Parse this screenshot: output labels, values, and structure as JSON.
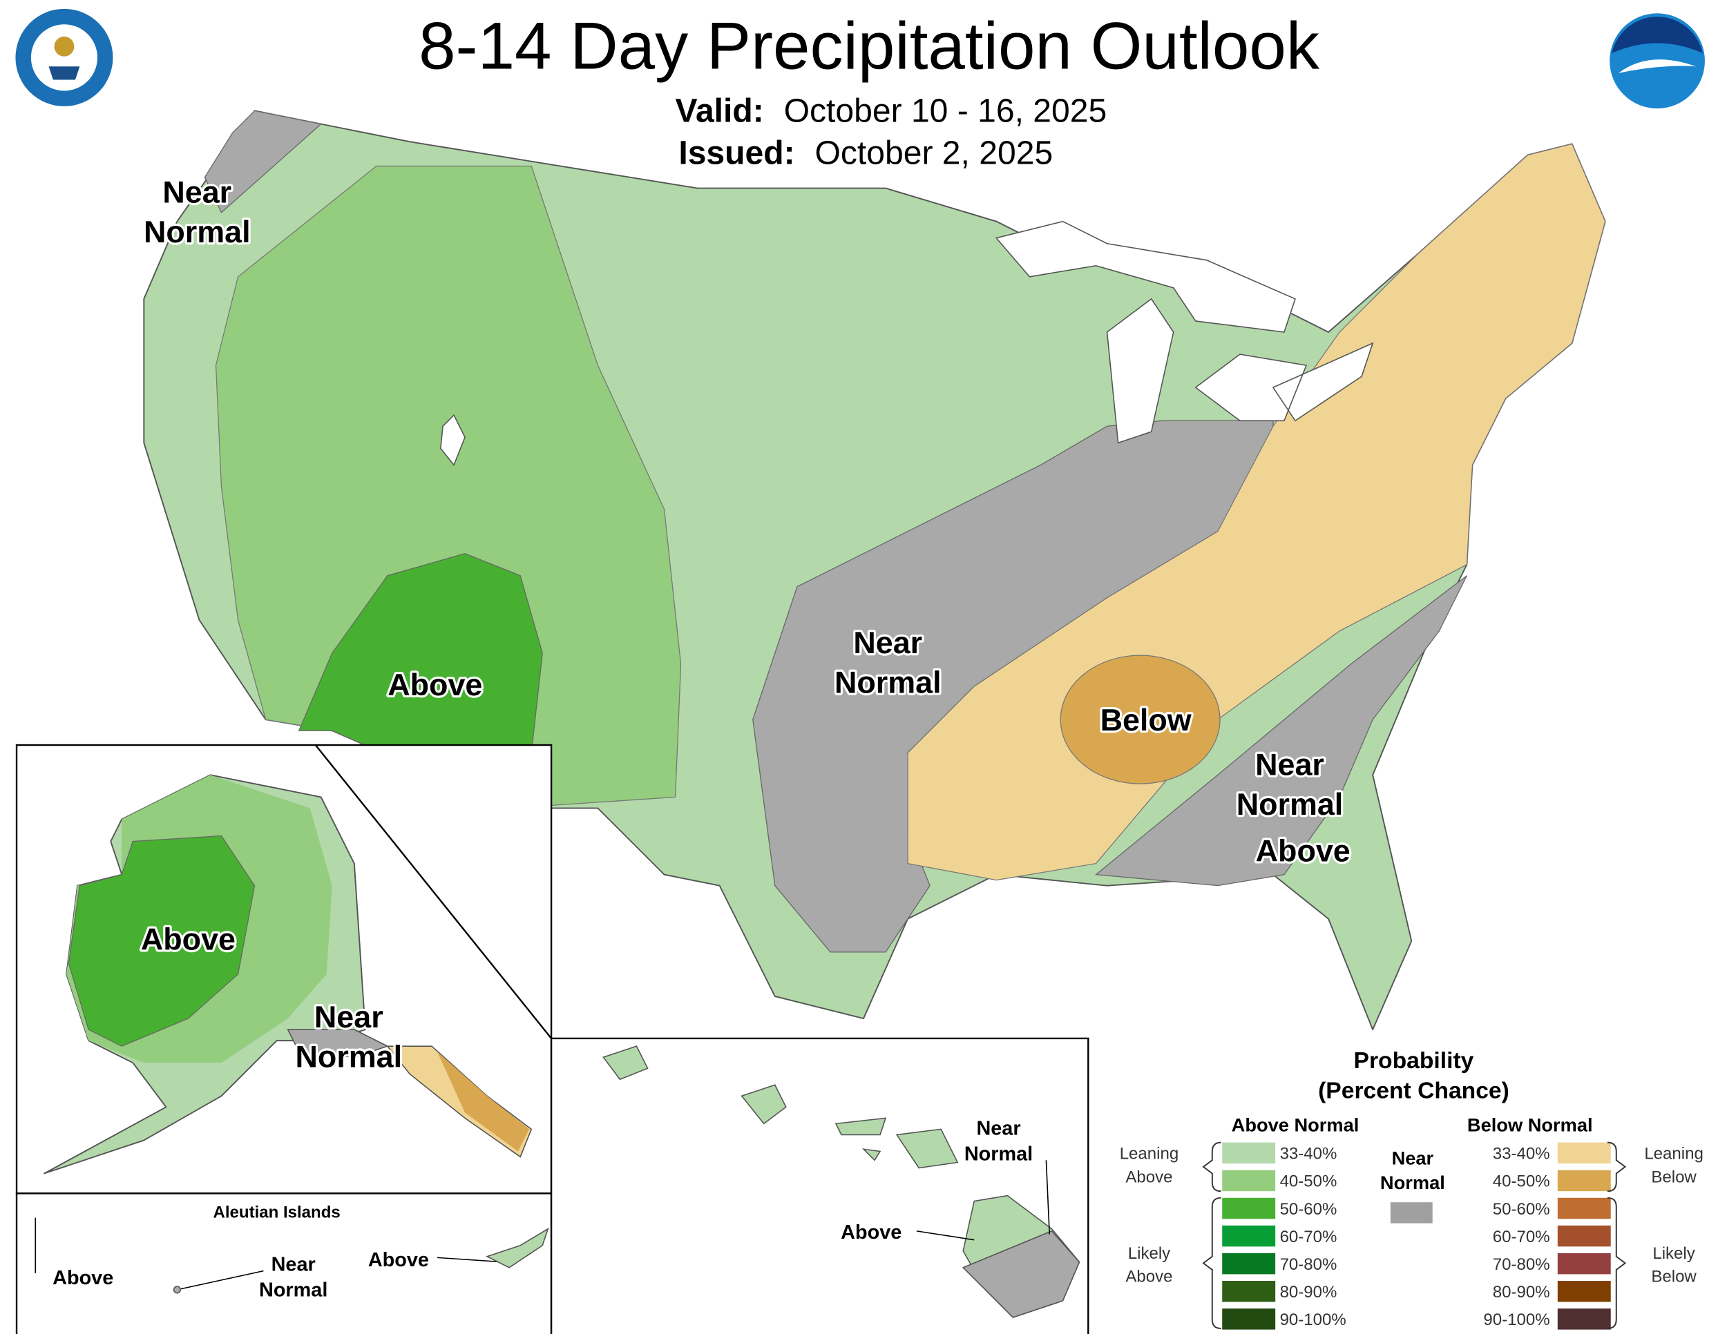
{
  "title": "8-14 Day Precipitation Outlook",
  "valid": {
    "label": "Valid:",
    "value": "October 10 - 16, 2025"
  },
  "issued": {
    "label": "Issued:",
    "value": "October 2, 2025"
  },
  "map_labels": [
    {
      "lines": [
        "Near",
        "Normal"
      ]
    },
    {
      "lines": [
        "Above"
      ]
    },
    {
      "lines": [
        "Near",
        "Normal"
      ]
    },
    {
      "lines": [
        "Below"
      ]
    },
    {
      "lines": [
        "Near",
        "Normal"
      ]
    },
    {
      "lines": [
        "Above"
      ]
    }
  ],
  "alaska": {
    "labels": [
      {
        "lines": [
          "Above"
        ]
      },
      {
        "lines": [
          "Near",
          "Normal"
        ]
      }
    ]
  },
  "aleutians": {
    "title": "Aleutian Islands",
    "labels": [
      {
        "lines": [
          "Above"
        ]
      },
      {
        "lines": [
          "Near",
          "Normal"
        ]
      },
      {
        "lines": [
          "Above"
        ]
      }
    ]
  },
  "hawaii": {
    "labels": [
      {
        "lines": [
          "Near",
          "Normal"
        ]
      },
      {
        "lines": [
          "Above"
        ]
      }
    ]
  },
  "legend": {
    "title": "Probability",
    "subtitle": "(Percent Chance)",
    "above": {
      "heading": "Above Normal",
      "items": [
        {
          "range": "33-40%",
          "color": "#b3d9ab"
        },
        {
          "range": "40-50%",
          "color": "#94cd7e"
        },
        {
          "range": "50-60%",
          "color": "#48b030"
        },
        {
          "range": "60-70%",
          "color": "#079f35"
        },
        {
          "range": "70-80%",
          "color": "#067a23"
        },
        {
          "range": "80-90%",
          "color": "#2e5e14"
        },
        {
          "range": "90-100%",
          "color": "#234a10"
        }
      ],
      "groups": [
        {
          "lines": [
            "Leaning",
            "Above"
          ]
        },
        {
          "lines": [
            "Likely",
            "Above"
          ]
        }
      ]
    },
    "near": {
      "lines": [
        "Near",
        "Normal"
      ],
      "color": "#a0a0a0"
    },
    "below": {
      "heading": "Below Normal",
      "items": [
        {
          "range": "33-40%",
          "color": "#f0d493"
        },
        {
          "range": "40-50%",
          "color": "#d8a750"
        },
        {
          "range": "50-60%",
          "color": "#bf6e31"
        },
        {
          "range": "60-70%",
          "color": "#a4502c"
        },
        {
          "range": "70-80%",
          "color": "#954040"
        },
        {
          "range": "80-90%",
          "color": "#7f3f00"
        },
        {
          "range": "90-100%",
          "color": "#4f2f30"
        }
      ],
      "groups": [
        {
          "lines": [
            "Leaning",
            "Below"
          ]
        },
        {
          "lines": [
            "Likely",
            "Below"
          ]
        }
      ]
    }
  }
}
